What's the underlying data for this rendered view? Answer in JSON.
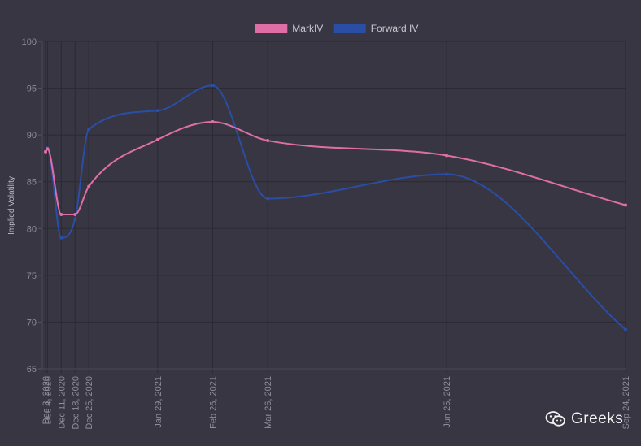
{
  "chart_data": {
    "type": "line",
    "title": "",
    "xlabel": "",
    "ylabel": "Implied Volatility",
    "ylim": [
      65,
      100
    ],
    "yticks": [
      65,
      70,
      75,
      80,
      85,
      90,
      95,
      100
    ],
    "x_axis": "time",
    "x": [
      "2020-12-03",
      "2020-12-04",
      "2020-12-11",
      "2020-12-18",
      "2020-12-25",
      "2021-01-29",
      "2021-02-26",
      "2021-03-26",
      "2021-06-25",
      "2021-09-24"
    ],
    "x_tick_labels": [
      "Dec 3, 2020",
      "Dec 4, 2020",
      "Dec 11, 2020",
      "Dec 18, 2020",
      "Dec 25, 2020",
      "Jan 29, 2021",
      "Feb 26, 2021",
      "Mar 26, 2021",
      "Jun 25, 2021",
      "Sep 24, 2021"
    ],
    "grid": true,
    "legend": "top-center",
    "series": [
      {
        "name": "MarkIV",
        "color": "#e06ea6",
        "values": [
          88.2,
          88.5,
          81.5,
          81.5,
          84.5,
          89.5,
          91.4,
          89.4,
          87.8,
          82.5
        ]
      },
      {
        "name": "Forward IV",
        "color": "#2a4ea6",
        "values": [
          88.2,
          88.6,
          79.0,
          81.0,
          90.6,
          92.6,
          95.3,
          83.2,
          85.8,
          69.2
        ]
      }
    ]
  },
  "watermark": {
    "text": "Greeks",
    "icon": "wechat-icon"
  }
}
